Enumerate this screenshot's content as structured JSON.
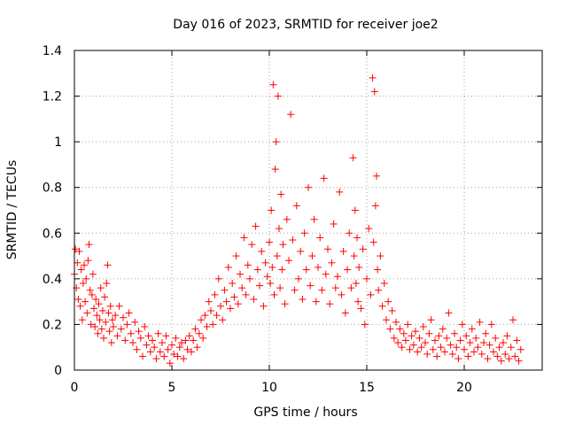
{
  "chart_data": {
    "type": "scatter",
    "title": "Day 016 of 2023, SRMTID for receiver joe2",
    "xlabel": "GPS time / hours",
    "ylabel": "SRMTID / TECUs",
    "xlim": [
      0,
      24
    ],
    "ylim": [
      0,
      1.4
    ],
    "x_ticks": [
      0,
      5,
      10,
      15,
      20
    ],
    "x_tick_labels": [
      "0",
      "5",
      "10",
      "15",
      "20"
    ],
    "y_ticks": [
      0,
      0.2,
      0.4,
      0.6,
      0.8,
      1.0,
      1.2,
      1.4
    ],
    "y_tick_labels": [
      "0",
      "0.2",
      "0.4",
      "0.6",
      "0.8",
      "1",
      "1.2",
      "1.4"
    ],
    "grid": true,
    "marker": "+",
    "colors": {
      "series": "#ff0000",
      "axes": "#000000",
      "grid": "#a0a0a0"
    },
    "series": [
      {
        "name": "SRMTID",
        "points": [
          [
            0.0,
            0.42
          ],
          [
            0.05,
            0.53
          ],
          [
            0.1,
            0.36
          ],
          [
            0.15,
            0.47
          ],
          [
            0.2,
            0.31
          ],
          [
            0.25,
            0.52
          ],
          [
            0.3,
            0.28
          ],
          [
            0.35,
            0.44
          ],
          [
            0.4,
            0.22
          ],
          [
            0.45,
            0.38
          ],
          [
            0.5,
            0.46
          ],
          [
            0.55,
            0.3
          ],
          [
            0.6,
            0.4
          ],
          [
            0.65,
            0.25
          ],
          [
            0.7,
            0.48
          ],
          [
            0.75,
            0.55
          ],
          [
            0.8,
            0.35
          ],
          [
            0.85,
            0.2
          ],
          [
            0.9,
            0.33
          ],
          [
            0.95,
            0.42
          ],
          [
            1.0,
            0.27
          ],
          [
            1.05,
            0.19
          ],
          [
            1.1,
            0.31
          ],
          [
            1.15,
            0.24
          ],
          [
            1.2,
            0.16
          ],
          [
            1.25,
            0.29
          ],
          [
            1.3,
            0.22
          ],
          [
            1.35,
            0.36
          ],
          [
            1.4,
            0.18
          ],
          [
            1.45,
            0.26
          ],
          [
            1.5,
            0.14
          ],
          [
            1.55,
            0.32
          ],
          [
            1.6,
            0.21
          ],
          [
            1.65,
            0.38
          ],
          [
            1.7,
            0.46
          ],
          [
            1.75,
            0.25
          ],
          [
            1.8,
            0.17
          ],
          [
            1.85,
            0.28
          ],
          [
            1.9,
            0.12
          ],
          [
            1.95,
            0.22
          ],
          [
            2.0,
            0.19
          ],
          [
            2.1,
            0.24
          ],
          [
            2.2,
            0.15
          ],
          [
            2.3,
            0.28
          ],
          [
            2.4,
            0.18
          ],
          [
            2.5,
            0.23
          ],
          [
            2.6,
            0.13
          ],
          [
            2.7,
            0.2
          ],
          [
            2.8,
            0.25
          ],
          [
            2.9,
            0.16
          ],
          [
            3.0,
            0.12
          ],
          [
            3.1,
            0.21
          ],
          [
            3.2,
            0.09
          ],
          [
            3.3,
            0.17
          ],
          [
            3.4,
            0.14
          ],
          [
            3.5,
            0.06
          ],
          [
            3.6,
            0.19
          ],
          [
            3.7,
            0.11
          ],
          [
            3.8,
            0.15
          ],
          [
            3.9,
            0.08
          ],
          [
            4.0,
            0.13
          ],
          [
            4.1,
            0.1
          ],
          [
            4.2,
            0.05
          ],
          [
            4.3,
            0.16
          ],
          [
            4.4,
            0.08
          ],
          [
            4.5,
            0.12
          ],
          [
            4.6,
            0.06
          ],
          [
            4.7,
            0.15
          ],
          [
            4.8,
            0.09
          ],
          [
            4.9,
            0.03
          ],
          [
            5.0,
            0.11
          ],
          [
            5.1,
            0.07
          ],
          [
            5.2,
            0.14
          ],
          [
            5.3,
            0.06
          ],
          [
            5.4,
            0.1
          ],
          [
            5.5,
            0.12
          ],
          [
            5.6,
            0.05
          ],
          [
            5.7,
            0.13
          ],
          [
            5.8,
            0.09
          ],
          [
            5.9,
            0.15
          ],
          [
            6.0,
            0.08
          ],
          [
            6.1,
            0.13
          ],
          [
            6.2,
            0.18
          ],
          [
            6.3,
            0.1
          ],
          [
            6.4,
            0.16
          ],
          [
            6.5,
            0.22
          ],
          [
            6.6,
            0.14
          ],
          [
            6.7,
            0.24
          ],
          [
            6.8,
            0.19
          ],
          [
            6.9,
            0.3
          ],
          [
            7.0,
            0.26
          ],
          [
            7.1,
            0.2
          ],
          [
            7.2,
            0.33
          ],
          [
            7.3,
            0.24
          ],
          [
            7.4,
            0.4
          ],
          [
            7.5,
            0.28
          ],
          [
            7.6,
            0.22
          ],
          [
            7.7,
            0.35
          ],
          [
            7.8,
            0.3
          ],
          [
            7.9,
            0.45
          ],
          [
            8.0,
            0.27
          ],
          [
            8.1,
            0.38
          ],
          [
            8.2,
            0.32
          ],
          [
            8.3,
            0.5
          ],
          [
            8.4,
            0.29
          ],
          [
            8.5,
            0.42
          ],
          [
            8.6,
            0.36
          ],
          [
            8.7,
            0.58
          ],
          [
            8.8,
            0.33
          ],
          [
            8.9,
            0.46
          ],
          [
            9.0,
            0.4
          ],
          [
            9.1,
            0.55
          ],
          [
            9.2,
            0.31
          ],
          [
            9.3,
            0.63
          ],
          [
            9.4,
            0.44
          ],
          [
            9.5,
            0.37
          ],
          [
            9.6,
            0.52
          ],
          [
            9.7,
            0.28
          ],
          [
            9.8,
            0.47
          ],
          [
            9.9,
            0.41
          ],
          [
            10.0,
            0.56
          ],
          [
            10.05,
            0.38
          ],
          [
            10.1,
            0.7
          ],
          [
            10.15,
            0.45
          ],
          [
            10.2,
            1.25
          ],
          [
            10.25,
            0.33
          ],
          [
            10.3,
            0.88
          ],
          [
            10.35,
            1.0
          ],
          [
            10.4,
            0.5
          ],
          [
            10.45,
            1.2
          ],
          [
            10.5,
            0.62
          ],
          [
            10.55,
            0.36
          ],
          [
            10.6,
            0.77
          ],
          [
            10.65,
            0.44
          ],
          [
            10.7,
            0.55
          ],
          [
            10.8,
            0.29
          ],
          [
            10.9,
            0.66
          ],
          [
            11.0,
            0.48
          ],
          [
            11.1,
            1.12
          ],
          [
            11.2,
            0.57
          ],
          [
            11.3,
            0.35
          ],
          [
            11.4,
            0.72
          ],
          [
            11.5,
            0.4
          ],
          [
            11.6,
            0.52
          ],
          [
            11.7,
            0.31
          ],
          [
            11.8,
            0.6
          ],
          [
            11.9,
            0.44
          ],
          [
            12.0,
            0.8
          ],
          [
            12.1,
            0.37
          ],
          [
            12.2,
            0.5
          ],
          [
            12.3,
            0.66
          ],
          [
            12.4,
            0.3
          ],
          [
            12.5,
            0.45
          ],
          [
            12.6,
            0.58
          ],
          [
            12.7,
            0.35
          ],
          [
            12.8,
            0.84
          ],
          [
            12.9,
            0.42
          ],
          [
            13.0,
            0.53
          ],
          [
            13.1,
            0.29
          ],
          [
            13.2,
            0.47
          ],
          [
            13.3,
            0.64
          ],
          [
            13.4,
            0.36
          ],
          [
            13.5,
            0.41
          ],
          [
            13.6,
            0.78
          ],
          [
            13.7,
            0.33
          ],
          [
            13.8,
            0.52
          ],
          [
            13.9,
            0.25
          ],
          [
            14.0,
            0.44
          ],
          [
            14.1,
            0.6
          ],
          [
            14.2,
            0.36
          ],
          [
            14.3,
            0.93
          ],
          [
            14.35,
            0.5
          ],
          [
            14.4,
            0.7
          ],
          [
            14.45,
            0.38
          ],
          [
            14.5,
            0.58
          ],
          [
            14.55,
            0.3
          ],
          [
            14.6,
            0.45
          ],
          [
            14.7,
            0.27
          ],
          [
            14.8,
            0.53
          ],
          [
            14.9,
            0.2
          ],
          [
            15.0,
            0.4
          ],
          [
            15.1,
            0.62
          ],
          [
            15.2,
            0.33
          ],
          [
            15.3,
            1.28
          ],
          [
            15.35,
            0.56
          ],
          [
            15.4,
            1.22
          ],
          [
            15.45,
            0.72
          ],
          [
            15.5,
            0.85
          ],
          [
            15.55,
            0.44
          ],
          [
            15.6,
            0.35
          ],
          [
            15.7,
            0.5
          ],
          [
            15.8,
            0.28
          ],
          [
            15.9,
            0.38
          ],
          [
            16.0,
            0.22
          ],
          [
            16.1,
            0.3
          ],
          [
            16.2,
            0.18
          ],
          [
            16.3,
            0.26
          ],
          [
            16.4,
            0.14
          ],
          [
            16.5,
            0.21
          ],
          [
            16.6,
            0.12
          ],
          [
            16.7,
            0.18
          ],
          [
            16.8,
            0.1
          ],
          [
            16.9,
            0.16
          ],
          [
            17.0,
            0.13
          ],
          [
            17.1,
            0.2
          ],
          [
            17.2,
            0.09
          ],
          [
            17.3,
            0.15
          ],
          [
            17.4,
            0.11
          ],
          [
            17.5,
            0.17
          ],
          [
            17.6,
            0.08
          ],
          [
            17.7,
            0.14
          ],
          [
            17.8,
            0.1
          ],
          [
            17.9,
            0.19
          ],
          [
            18.0,
            0.12
          ],
          [
            18.1,
            0.07
          ],
          [
            18.2,
            0.16
          ],
          [
            18.3,
            0.22
          ],
          [
            18.4,
            0.09
          ],
          [
            18.5,
            0.13
          ],
          [
            18.6,
            0.06
          ],
          [
            18.7,
            0.15
          ],
          [
            18.8,
            0.1
          ],
          [
            18.9,
            0.18
          ],
          [
            19.0,
            0.08
          ],
          [
            19.1,
            0.14
          ],
          [
            19.2,
            0.25
          ],
          [
            19.3,
            0.11
          ],
          [
            19.4,
            0.07
          ],
          [
            19.5,
            0.16
          ],
          [
            19.6,
            0.1
          ],
          [
            19.7,
            0.05
          ],
          [
            19.8,
            0.13
          ],
          [
            19.9,
            0.2
          ],
          [
            20.0,
            0.09
          ],
          [
            20.1,
            0.15
          ],
          [
            20.2,
            0.06
          ],
          [
            20.3,
            0.12
          ],
          [
            20.4,
            0.18
          ],
          [
            20.5,
            0.08
          ],
          [
            20.6,
            0.14
          ],
          [
            20.7,
            0.1
          ],
          [
            20.8,
            0.21
          ],
          [
            20.9,
            0.07
          ],
          [
            21.0,
            0.12
          ],
          [
            21.1,
            0.16
          ],
          [
            21.2,
            0.05
          ],
          [
            21.3,
            0.11
          ],
          [
            21.4,
            0.2
          ],
          [
            21.5,
            0.08
          ],
          [
            21.6,
            0.14
          ],
          [
            21.7,
            0.06
          ],
          [
            21.8,
            0.1
          ],
          [
            21.9,
            0.04
          ],
          [
            22.0,
            0.12
          ],
          [
            22.1,
            0.07
          ],
          [
            22.2,
            0.15
          ],
          [
            22.3,
            0.05
          ],
          [
            22.4,
            0.1
          ],
          [
            22.5,
            0.22
          ],
          [
            22.6,
            0.06
          ],
          [
            22.7,
            0.13
          ],
          [
            22.8,
            0.04
          ],
          [
            22.9,
            0.09
          ]
        ]
      }
    ]
  }
}
